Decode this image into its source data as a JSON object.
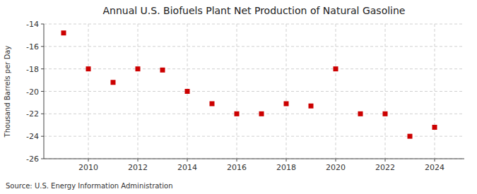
{
  "chart_data": {
    "type": "scatter",
    "title": "Annual U.S. Biofuels Plant Net Production of Natural Gasoline",
    "y_label": "Thousand Barrels per Day",
    "source": "Source: U.S. Energy Information Administration",
    "x": [
      2009,
      2010,
      2011,
      2012,
      2013,
      2014,
      2015,
      2016,
      2017,
      2018,
      2019,
      2020,
      2021,
      2022,
      2023,
      2024
    ],
    "values": [
      -14.8,
      -18.0,
      -19.2,
      -18.0,
      -18.1,
      -20.0,
      -21.1,
      -22.0,
      -22.0,
      -21.1,
      -21.3,
      -18.0,
      -22.0,
      -22.0,
      -24.0,
      -23.2
    ],
    "color": "#cc0000",
    "marker": "square",
    "xlim": [
      2008.2,
      2025.2
    ],
    "ylim": [
      -26,
      -14
    ],
    "xticks": [
      2010,
      2012,
      2014,
      2016,
      2018,
      2020,
      2022,
      2024
    ],
    "yticks": [
      -26,
      -24,
      -22,
      -20,
      -18,
      -16,
      -14
    ],
    "grid": true
  }
}
